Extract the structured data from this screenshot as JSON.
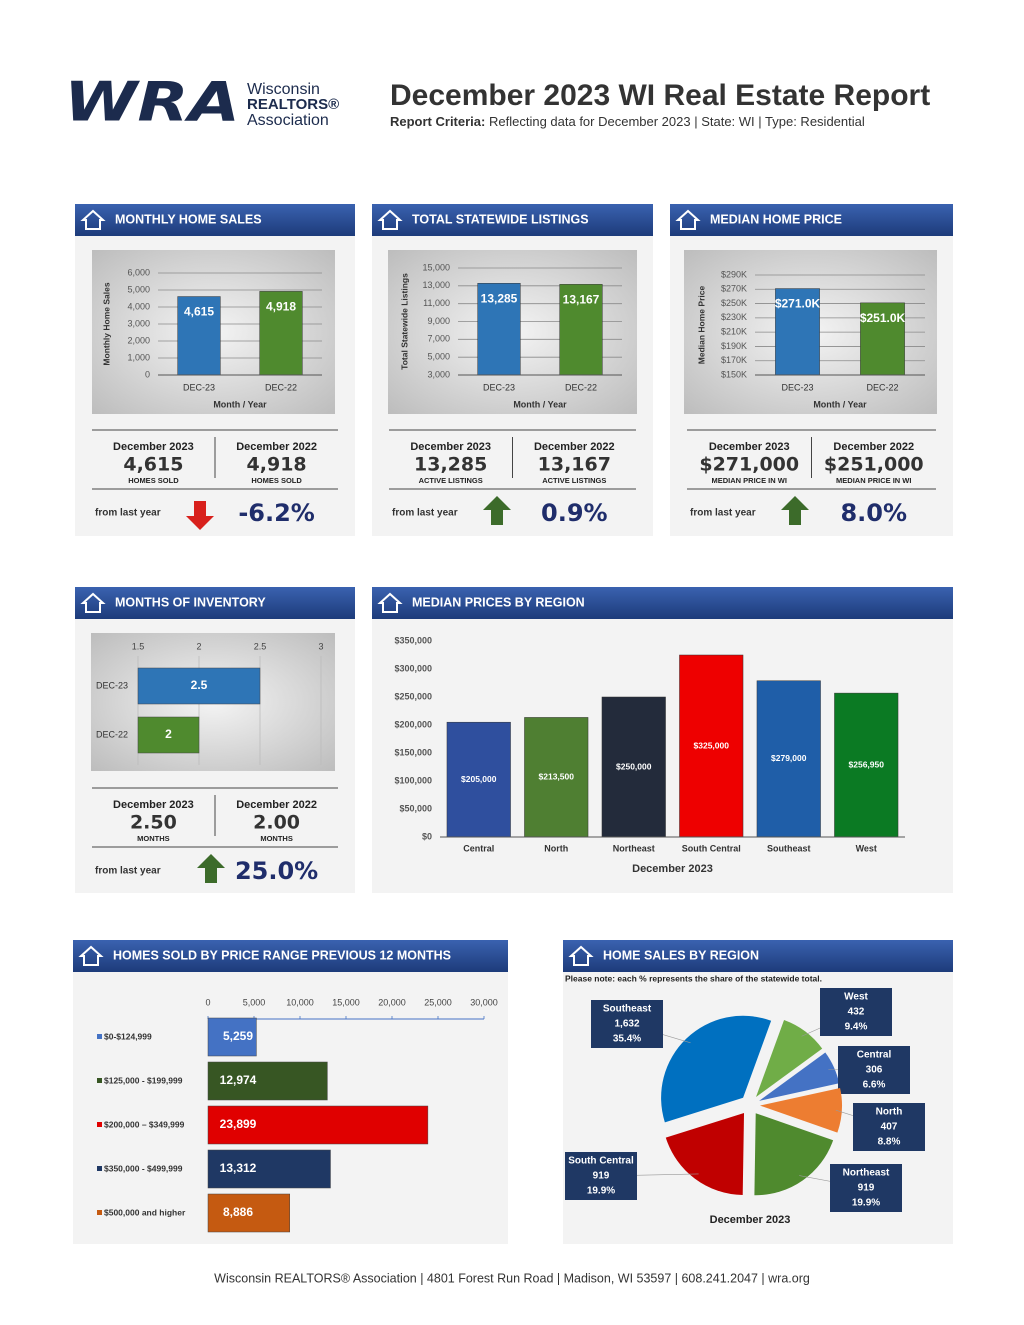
{
  "header": {
    "logo_mark": "WRA",
    "logo_lines": [
      "Wisconsin",
      "REALTORS®",
      "Association"
    ],
    "title": "December 2023 WI Real Estate Report",
    "criteria_label": "Report Criteria:",
    "criteria": "Reflecting data for December 2023 | State: WI | Type: Residential"
  },
  "chart_data": [
    {
      "type": "bar",
      "title": "MONTHLY HOME SALES",
      "categories": [
        "DEC-23",
        "DEC-22"
      ],
      "values": [
        4615,
        4918
      ],
      "value_labels": [
        "4,615",
        "4,918"
      ],
      "colors": [
        "#2e75b6",
        "#4f8a2e"
      ],
      "ylabel": "Monthly Home Sales",
      "xlabel": "Month / Year",
      "ylim": [
        0,
        6000
      ],
      "yticks": [
        0,
        {
          "value": 1000,
          "label": "1,000"
        },
        {
          "value": 2000,
          "label": "2,000"
        },
        {
          "value": 3000,
          "label": "3,000"
        },
        {
          "value": 4000,
          "label": "4,000"
        },
        {
          "value": 5000,
          "label": "5,000"
        },
        {
          "value": 6000,
          "label": "6,000"
        }
      ],
      "grid": true
    },
    {
      "type": "bar",
      "title": "TOTAL STATEWIDE LISTINGS",
      "categories": [
        "DEC-23",
        "DEC-22"
      ],
      "values": [
        13285,
        13167
      ],
      "value_labels": [
        "13,285",
        "13,167"
      ],
      "colors": [
        "#2e75b6",
        "#4f8a2e"
      ],
      "ylabel": "Total Statewide Listings",
      "xlabel": "Month / Year",
      "ylim": [
        3000,
        15000
      ],
      "yticks": [
        {
          "value": 3000,
          "label": "3,000"
        },
        {
          "value": 5000,
          "label": "5,000"
        },
        {
          "value": 7000,
          "label": "7,000"
        },
        {
          "value": 9000,
          "label": "9,000"
        },
        {
          "value": 11000,
          "label": "11,000"
        },
        {
          "value": 13000,
          "label": "13,000"
        },
        {
          "value": 15000,
          "label": "15,000"
        }
      ],
      "grid": true
    },
    {
      "type": "bar",
      "title": "MEDIAN HOME PRICE",
      "categories": [
        "DEC-23",
        "DEC-22"
      ],
      "values": [
        271000,
        251000
      ],
      "value_labels": [
        "$271.0K",
        "$251.0K"
      ],
      "colors": [
        "#2e75b6",
        "#4f8a2e"
      ],
      "ylabel": "Median Home Price",
      "xlabel": "Month / Year",
      "ylim": [
        150000,
        290000
      ],
      "yticks": [
        {
          "value": 150000,
          "label": "$150K"
        },
        {
          "value": 170000,
          "label": "$170K"
        },
        {
          "value": 190000,
          "label": "$190K"
        },
        {
          "value": 210000,
          "label": "$210K"
        },
        {
          "value": 230000,
          "label": "$230K"
        },
        {
          "value": 250000,
          "label": "$250K"
        },
        {
          "value": 270000,
          "label": "$270K"
        },
        {
          "value": 290000,
          "label": "$290K"
        }
      ],
      "grid": true
    },
    {
      "type": "hbar",
      "title": "MONTHS OF INVENTORY",
      "categories": [
        "DEC-23",
        "DEC-22"
      ],
      "values": [
        2.5,
        2
      ],
      "colors": [
        "#2e75b6",
        "#4f8a2e"
      ],
      "xlim": [
        1.5,
        3
      ],
      "xticks": [
        1.5,
        2,
        2.5,
        3
      ],
      "grid": false
    },
    {
      "type": "bar",
      "title": "MEDIAN PRICES BY REGION",
      "categories": [
        "Central",
        "North",
        "Northeast",
        "South Central",
        "Southeast",
        "West"
      ],
      "values": [
        205000,
        213500,
        250000,
        325000,
        279000,
        256950
      ],
      "value_labels": [
        "$205,000",
        "$213,500",
        "$250,000",
        "$325,000",
        "$279,000",
        "$256,950"
      ],
      "colors": [
        "#2f4f9e",
        "#4f7f32",
        "#232b3b",
        "#ee0000",
        "#1f5ea8",
        "#0b7a23"
      ],
      "xlabel": "December 2023",
      "ylim": [
        0,
        350000
      ],
      "yticks": [
        {
          "value": 0,
          "label": "$0"
        },
        {
          "value": 50000,
          "label": "$50,000"
        },
        {
          "value": 100000,
          "label": "$100,000"
        },
        {
          "value": 150000,
          "label": "$150,000"
        },
        {
          "value": 200000,
          "label": "$200,000"
        },
        {
          "value": 250000,
          "label": "$250,000"
        },
        {
          "value": 300000,
          "label": "$300,000"
        },
        {
          "value": 350000,
          "label": "$350,000"
        }
      ],
      "grid": false
    },
    {
      "type": "hbar",
      "title": "HOMES SOLD BY PRICE RANGE PREVIOUS 12 MONTHS",
      "categories": [
        "$0-$124,999",
        "$125,000 - $199,999",
        "$200,000 – $349,999",
        "$350,000 - $499,999",
        "$500,000 and higher"
      ],
      "values": [
        5259,
        12974,
        23899,
        13312,
        8886
      ],
      "value_labels": [
        "5,259",
        "12,974",
        "23,899",
        "13,312",
        "8,886"
      ],
      "colors": [
        "#4472c4",
        "#375623",
        "#e00000",
        "#1f3864",
        "#c55a11"
      ],
      "xlim": [
        0,
        30000
      ],
      "xticks": [
        0,
        {
          "value": 5000,
          "label": "5,000"
        },
        {
          "value": 10000,
          "label": "10,000"
        },
        {
          "value": 15000,
          "label": "15,000"
        },
        {
          "value": 20000,
          "label": "20,000"
        },
        {
          "value": 25000,
          "label": "25,000"
        },
        {
          "value": 30000,
          "label": "30,000"
        }
      ],
      "grid": false
    },
    {
      "type": "pie",
      "title": "HOME SALES BY REGION",
      "subtitle": "Please note: each % represents the share of the statewide total.",
      "categories": [
        "West",
        "Central",
        "North",
        "Northeast",
        "South Central",
        "Southeast"
      ],
      "values": [
        9.4,
        6.6,
        8.8,
        19.9,
        19.9,
        35.4
      ],
      "value_labels": [
        "9.4%",
        "6.6%",
        "8.8%",
        "19.9%",
        "19.9%",
        "35.4%"
      ],
      "counts": [
        432,
        306,
        407,
        919,
        919,
        1632
      ],
      "count_labels": [
        "432",
        "306",
        "407",
        "919",
        "919",
        "1,632"
      ],
      "colors": [
        "#70ad47",
        "#4472c4",
        "#ed7d31",
        "#4f8a2e",
        "#c00000",
        "#0070c0"
      ],
      "xlabel": "December 2023"
    }
  ],
  "stats": [
    {
      "current": {
        "label": "December 2023",
        "value": "4,615",
        "unit": "HOMES SOLD"
      },
      "previous": {
        "label": "December 2022",
        "value": "4,918",
        "unit": "HOMES SOLD"
      },
      "change_label": "from last year",
      "change": "-6.2%",
      "direction": "down"
    },
    {
      "current": {
        "label": "December 2023",
        "value": "13,285",
        "unit": "ACTIVE LISTINGS"
      },
      "previous": {
        "label": "December 2022",
        "value": "13,167",
        "unit": "ACTIVE LISTINGS"
      },
      "change_label": "from last year",
      "change": "0.9%",
      "direction": "up"
    },
    {
      "current": {
        "label": "December 2023",
        "value": "$271,000",
        "unit": "MEDIAN PRICE IN WI"
      },
      "previous": {
        "label": "December 2022",
        "value": "$251,000",
        "unit": "MEDIAN PRICE IN WI"
      },
      "change_label": "from last year",
      "change": "8.0%",
      "direction": "up"
    },
    {
      "current": {
        "label": "December 2023",
        "value": "2.50",
        "unit": "MONTHS"
      },
      "previous": {
        "label": "December 2022",
        "value": "2.00",
        "unit": "MONTHS"
      },
      "change_label": "from last year",
      "change": "25.0%",
      "direction": "up"
    }
  ],
  "footer": "Wisconsin REALTORS® Association | 4801 Forest Run Road | Madison, WI 53597 | 608.241.2047 | wra.org"
}
